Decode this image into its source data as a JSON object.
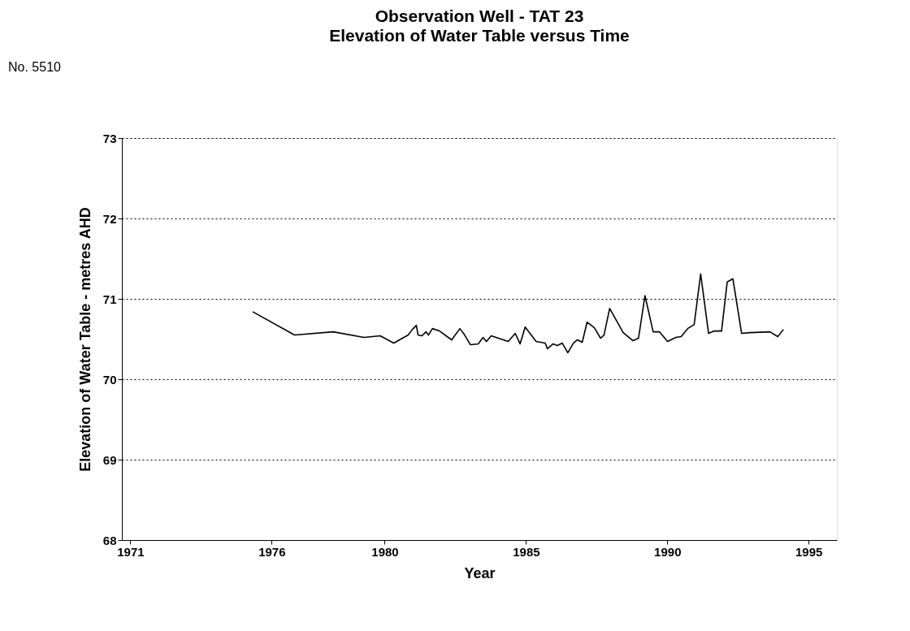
{
  "chart_data": {
    "type": "line",
    "title": "Observation Well - TAT 23",
    "subtitle": "Elevation of Water Table versus Time",
    "xlabel": "Year",
    "ylabel": "Elevation of Water Table - metres AHD",
    "annotations": [
      "No. 5510"
    ],
    "x": [
      1975.33,
      1976.81,
      1978.18,
      1979.27,
      1979.84,
      1980.32,
      1980.83,
      1980.98,
      1981.12,
      1981.18,
      1981.32,
      1981.46,
      1981.55,
      1981.69,
      1981.94,
      1982.37,
      1982.66,
      1982.83,
      1983.03,
      1983.31,
      1983.48,
      1983.6,
      1983.77,
      1984.37,
      1984.62,
      1984.79,
      1984.97,
      1985.36,
      1985.68,
      1985.76,
      1985.96,
      1986.11,
      1986.28,
      1986.48,
      1986.68,
      1986.82,
      1986.99,
      1987.16,
      1987.42,
      1987.64,
      1987.76,
      1987.96,
      1988.44,
      1988.78,
      1988.98,
      1989.21,
      1989.5,
      1989.72,
      1990.01,
      1990.3,
      1990.49,
      1990.72,
      1990.95,
      1991.18,
      1991.46,
      1991.66,
      1991.92,
      1992.12,
      1992.32,
      1992.63,
      1992.91,
      1993.63,
      1993.91,
      1994.11
    ],
    "series": [
      {
        "color": "#000000",
        "values": [
          70.84,
          70.55,
          70.59,
          70.52,
          70.54,
          70.45,
          70.55,
          70.62,
          70.67,
          70.55,
          70.54,
          70.59,
          70.55,
          70.63,
          70.6,
          70.49,
          70.63,
          70.55,
          70.43,
          70.44,
          70.52,
          70.47,
          70.54,
          70.47,
          70.57,
          70.44,
          70.65,
          70.47,
          70.45,
          70.38,
          70.44,
          70.42,
          70.45,
          70.33,
          70.45,
          70.49,
          70.46,
          70.71,
          70.64,
          70.51,
          70.55,
          70.88,
          70.58,
          70.48,
          70.51,
          71.04,
          70.59,
          70.59,
          70.47,
          70.52,
          70.53,
          70.63,
          70.68,
          71.31,
          70.57,
          70.6,
          70.6,
          71.21,
          71.25,
          70.57,
          70.58,
          70.59,
          70.53,
          70.62
        ]
      }
    ],
    "xlim": [
      1970.7,
      1996
    ],
    "xticks": [
      1971,
      1976,
      1980,
      1985,
      1990,
      1995
    ],
    "ylim": [
      68,
      73
    ],
    "yticks": [
      68,
      69,
      70,
      71,
      72,
      73
    ],
    "grid": "y",
    "legend": false,
    "marker": "none",
    "line_style": "solid"
  }
}
